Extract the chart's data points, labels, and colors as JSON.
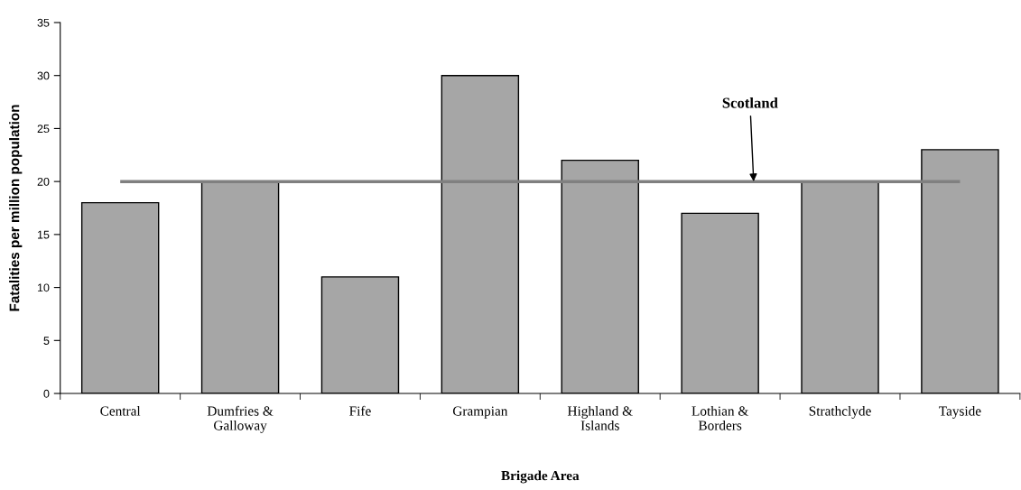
{
  "chart_data": {
    "type": "bar",
    "xlabel": "Brigade Area",
    "ylabel": "Fatalities per million population",
    "categories": [
      "Central",
      "Dumfries &\nGalloway",
      "Fife",
      "Grampian",
      "Highland &\nIslands",
      "Lothian &\nBorders",
      "Strathclyde",
      "Tayside"
    ],
    "values": [
      18,
      20,
      11,
      30,
      22,
      17,
      20,
      23
    ],
    "color": "#a6a6a6",
    "ylim": [
      0,
      35
    ],
    "yticks": [
      0,
      5,
      10,
      15,
      20,
      25,
      30,
      35
    ],
    "ref_lines": [
      {
        "axis": "y",
        "value": 20,
        "label": "Scotland",
        "color": "#808080",
        "line_style": "solid"
      }
    ],
    "grid": false,
    "legend": false
  }
}
